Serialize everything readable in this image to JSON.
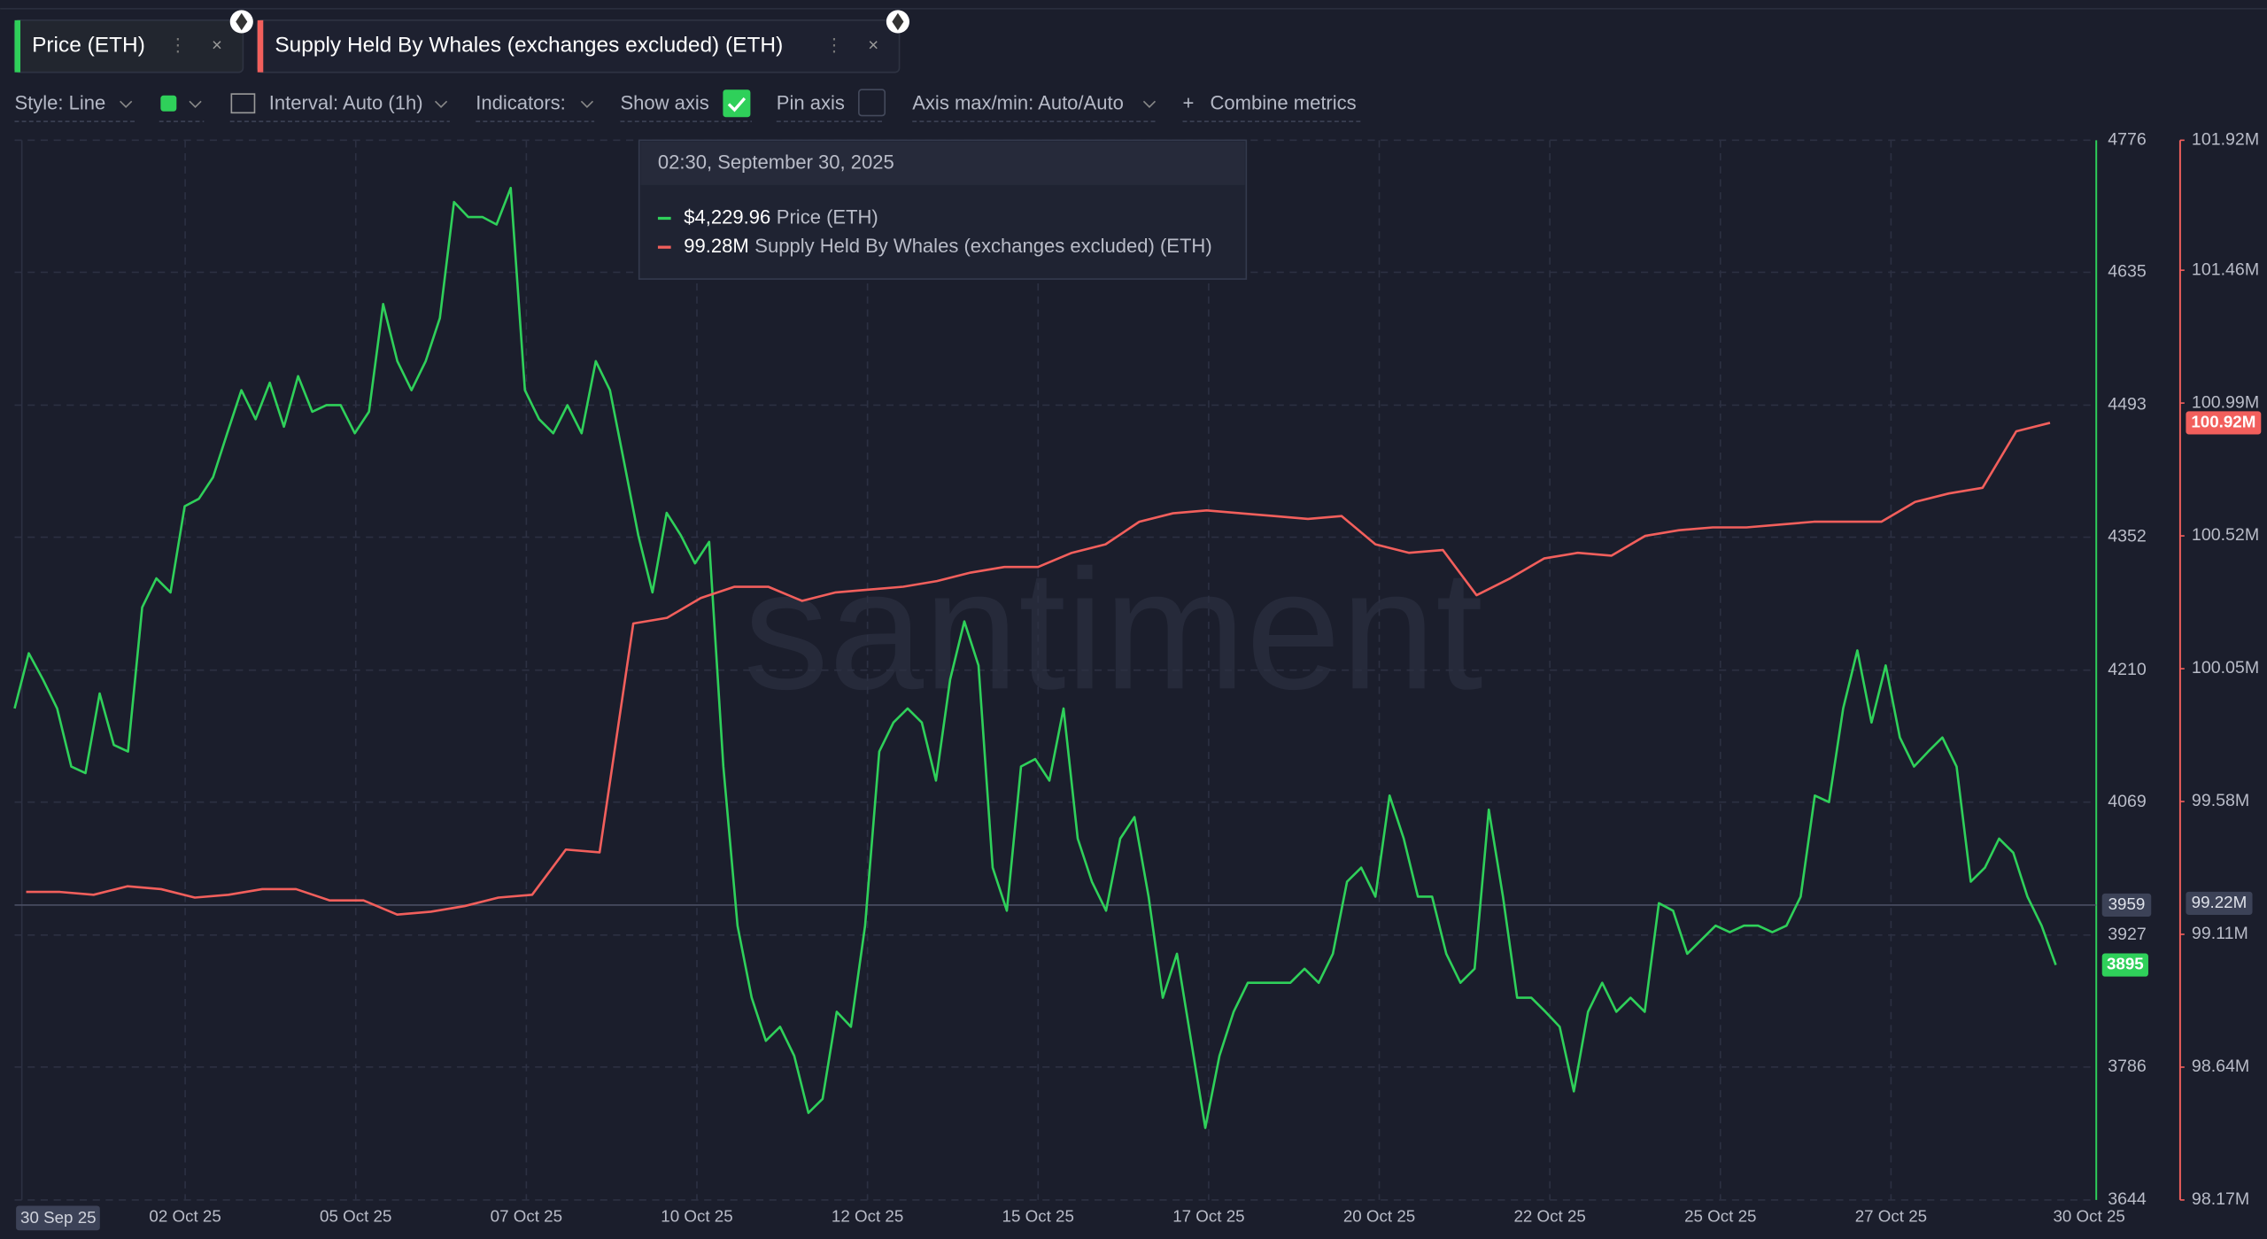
{
  "toolbar": {
    "style": "Style: Line",
    "interval": "Interval: Auto (1h)",
    "indicators": "Indicators:",
    "show_axis": "Show axis",
    "pin_axis": "Pin axis",
    "axis_maxmin": "Axis max/min: Auto/Auto",
    "combine": "Combine metrics"
  },
  "watermark": "santiment",
  "chart_data": {
    "type": "line",
    "xtick_labels": [
      "30 Sep 25",
      "02 Oct 25",
      "05 Oct 25",
      "07 Oct 25",
      "10 Oct 25",
      "12 Oct 25",
      "15 Oct 25",
      "17 Oct 25",
      "20 Oct 25",
      "22 Oct 25",
      "25 Oct 25",
      "27 Oct 25",
      "30 Oct 25"
    ],
    "ylim": [
      3644,
      4776
    ],
    "yticks": [
      3644,
      3786,
      3927,
      4069,
      4210,
      4352,
      4493,
      4635,
      4776
    ],
    "y2lim": [
      98170000,
      101920000
    ],
    "y2ticks": [
      {
        "value": 98170000,
        "label": "98.17M"
      },
      {
        "value": 98640000,
        "label": "98.64M"
      },
      {
        "value": 99110000,
        "label": "99.11M"
      },
      {
        "value": 99580000,
        "label": "99.58M"
      },
      {
        "value": 100050000,
        "label": "100.05M"
      },
      {
        "value": 100520000,
        "label": "100.52M"
      },
      {
        "value": 100990000,
        "label": "100.99M"
      },
      {
        "value": 101460000,
        "label": "101.46M"
      },
      {
        "value": 101920000,
        "label": "101.92M"
      }
    ],
    "grid": true,
    "crosshair": {
      "y": 3959,
      "y2": {
        "value": 99220000,
        "label": "99.22M"
      }
    },
    "tooltip": {
      "time": "02:30, September 30, 2025",
      "values": [
        {
          "value": 4229.96,
          "label": "$4,229.96"
        },
        {
          "value": 99280000,
          "label": "99.28M"
        }
      ]
    },
    "series": [
      {
        "name": "Price (ETH)",
        "color": "#2fd05a",
        "end_label": 3895,
        "values": [
          4169,
          4228,
          4200,
          4169,
          4107,
          4100,
          4185,
          4130,
          4123,
          4277,
          4308,
          4293,
          4385,
          4393,
          4416,
          4463,
          4509,
          4478,
          4517,
          4470,
          4524,
          4486,
          4493,
          4493,
          4463,
          4486,
          4601,
          4540,
          4509,
          4540,
          4586,
          4710,
          4694,
          4694,
          4686,
          4725,
          4509,
          4478,
          4463,
          4493,
          4463,
          4540,
          4509,
          4432,
          4354,
          4293,
          4378,
          4354,
          4324,
          4347,
          4107,
          3937,
          3860,
          3814,
          3829,
          3798,
          3737,
          3752,
          3845,
          3829,
          3937,
          4123,
          4154,
          4169,
          4154,
          4092,
          4200,
          4262,
          4215,
          3999,
          3953,
          4107,
          4115,
          4092,
          4169,
          4030,
          3984,
          3953,
          4030,
          4053,
          3968,
          3860,
          3907,
          3814,
          3721,
          3798,
          3845,
          3876,
          3876,
          3876,
          3876,
          3891,
          3876,
          3907,
          3984,
          3999,
          3968,
          4076,
          4030,
          3968,
          3968,
          3907,
          3876,
          3891,
          4061,
          3968,
          3860,
          3860,
          3845,
          3829,
          3760,
          3845,
          3876,
          3845,
          3860,
          3845,
          3961,
          3953,
          3907,
          3922,
          3937,
          3930,
          3937,
          3937,
          3930,
          3937,
          3968,
          4076,
          4069,
          4169,
          4231,
          4154,
          4215,
          4138,
          4107,
          4123,
          4138,
          4107,
          3984,
          3999,
          4030,
          4015,
          3968,
          3937,
          3895
        ]
      },
      {
        "name": "Supply Held By Whales (exchanges excluded) (ETH)",
        "color": "#f25f5c",
        "axis": "y2",
        "end_label": "100.92M",
        "values": [
          99260000,
          99260000,
          99250000,
          99280000,
          99270000,
          99240000,
          99250000,
          99270000,
          99270000,
          99230000,
          99230000,
          99180000,
          99190000,
          99210000,
          99240000,
          99250000,
          99410000,
          99400000,
          100210000,
          100230000,
          100300000,
          100340000,
          100340000,
          100290000,
          100320000,
          100330000,
          100340000,
          100360000,
          100390000,
          100410000,
          100410000,
          100460000,
          100490000,
          100570000,
          100600000,
          100610000,
          100600000,
          100590000,
          100580000,
          100590000,
          100490000,
          100460000,
          100470000,
          100310000,
          100370000,
          100440000,
          100460000,
          100450000,
          100520000,
          100540000,
          100550000,
          100550000,
          100560000,
          100570000,
          100570000,
          100570000,
          100640000,
          100670000,
          100690000,
          100890000,
          100920000
        ]
      }
    ]
  }
}
